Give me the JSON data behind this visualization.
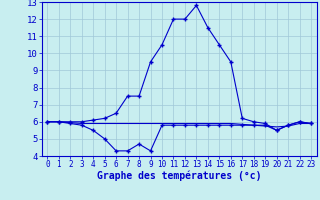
{
  "xlabel": "Graphe des températures (°c)",
  "bg_color": "#c8eef0",
  "grid_color": "#a0c8d8",
  "line_color": "#0000cc",
  "xlim": [
    -0.5,
    23.5
  ],
  "ylim": [
    4,
    13
  ],
  "yticks": [
    4,
    5,
    6,
    7,
    8,
    9,
    10,
    11,
    12,
    13
  ],
  "xticks": [
    0,
    1,
    2,
    3,
    4,
    5,
    6,
    7,
    8,
    9,
    10,
    11,
    12,
    13,
    14,
    15,
    16,
    17,
    18,
    19,
    20,
    21,
    22,
    23
  ],
  "series1_x": [
    0,
    1,
    2,
    3,
    4,
    5,
    6,
    7,
    8,
    9,
    10,
    11,
    12,
    13,
    14,
    15,
    16,
    17,
    18,
    19,
    20,
    21,
    22,
    23
  ],
  "series1_y": [
    6.0,
    6.0,
    6.0,
    6.0,
    6.1,
    6.2,
    6.5,
    7.5,
    7.5,
    9.5,
    10.5,
    12.0,
    12.0,
    12.8,
    11.5,
    10.5,
    9.5,
    6.2,
    6.0,
    5.9,
    5.5,
    5.8,
    6.0,
    5.9
  ],
  "series2_x": [
    0,
    1,
    2,
    3,
    4,
    5,
    6,
    7,
    8,
    9,
    10,
    11,
    12,
    13,
    14,
    15,
    16,
    17,
    18,
    19,
    20,
    21,
    22,
    23
  ],
  "series2_y": [
    6.0,
    6.0,
    5.9,
    5.8,
    5.5,
    5.0,
    4.3,
    4.3,
    4.7,
    4.3,
    5.8,
    5.8,
    5.8,
    5.8,
    5.8,
    5.8,
    5.8,
    5.8,
    5.8,
    5.8,
    5.5,
    5.8,
    6.0,
    5.9
  ],
  "series3_x": [
    0,
    1,
    2,
    3,
    4,
    5,
    6,
    7,
    8,
    9,
    10,
    11,
    12,
    13,
    14,
    15,
    16,
    17,
    18,
    19,
    20,
    21,
    22,
    23
  ],
  "series3_y": [
    6.0,
    6.0,
    5.95,
    5.9,
    5.9,
    5.9,
    5.9,
    5.9,
    5.9,
    5.9,
    5.9,
    5.9,
    5.9,
    5.9,
    5.9,
    5.9,
    5.9,
    5.85,
    5.8,
    5.75,
    5.7,
    5.75,
    5.9,
    5.9
  ]
}
